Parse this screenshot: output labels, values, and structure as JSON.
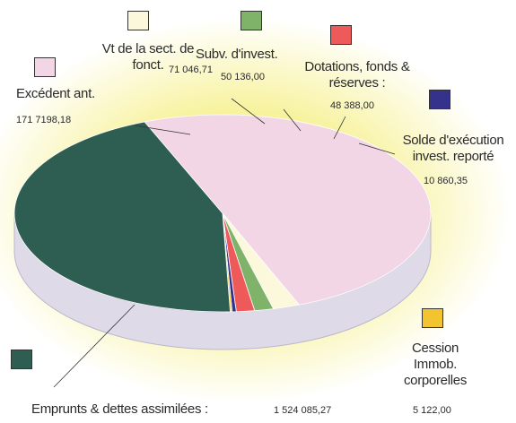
{
  "chart_data": {
    "type": "pie",
    "categories": [
      "Excédent ant.",
      "Vt de la sect. de fonct.",
      "Subv. d'invest.",
      "Dotations, fonds & réserves :",
      "Solde d'exécution invest. reporté",
      "Cession Immob. corporelles",
      "Emprunts & dettes assimilées :"
    ],
    "values": [
      1717198.18,
      71046.71,
      50136.0,
      48388.0,
      10860.35,
      5122.0,
      1524085.27
    ],
    "value_labels": [
      "171 7198,18",
      "71 046,71",
      "50 136,00",
      "48 388,00",
      "10 860,35",
      "5 122,00",
      "1 524 085,27"
    ],
    "colors": [
      "#f3d6e6",
      "#fbf8dc",
      "#7fb36a",
      "#ee5a5a",
      "#34328a",
      "#f2c530",
      "#2e5e52"
    ]
  }
}
